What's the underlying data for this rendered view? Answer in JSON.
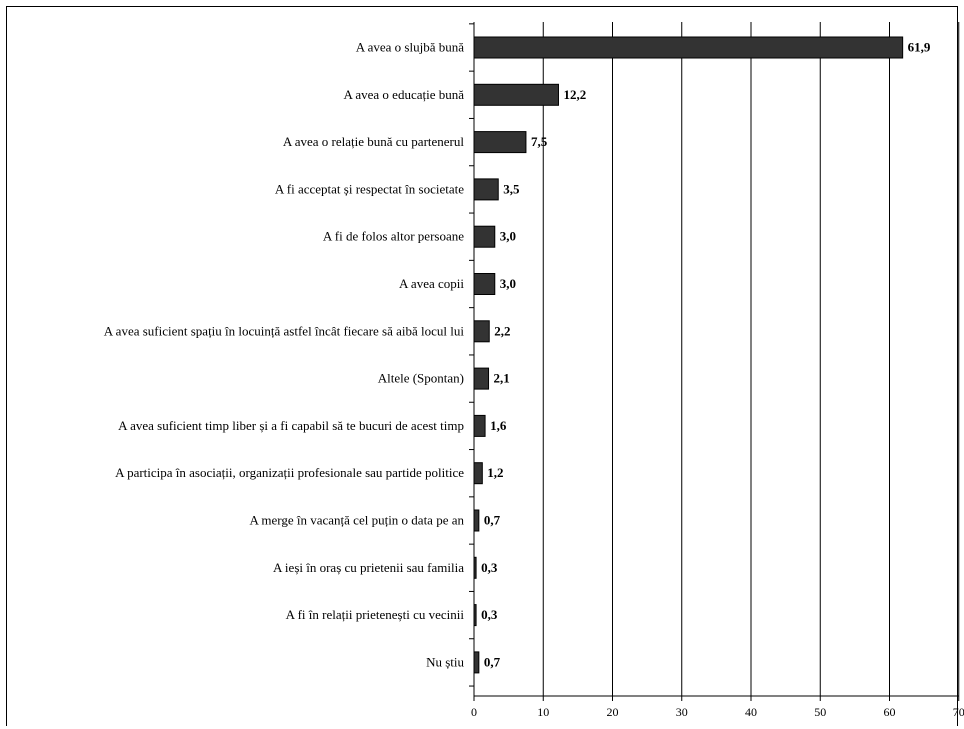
{
  "chart_data": {
    "type": "bar",
    "orientation": "horizontal",
    "categories": [
      "A avea o slujbă bună",
      "A avea o educație bună",
      "A avea o relație bună cu partenerul",
      "A fi acceptat și respectat în societate",
      "A fi de folos altor persoane",
      "A avea copii",
      "A avea suficient spațiu în locuință astfel încât fiecare să aibă locul lui",
      "Altele (Spontan)",
      "A avea suficient timp liber și a fi capabil să te bucuri de acest timp",
      "A participa în asociații, organizații profesionale sau partide politice",
      "A merge în vacanță cel puțin o data pe an",
      "A ieși în oraș cu prietenii sau familia",
      "A fi în relații prietenești cu vecinii",
      "Nu știu"
    ],
    "values": [
      61.9,
      12.2,
      7.5,
      3.5,
      3.0,
      3.0,
      2.2,
      2.1,
      1.6,
      1.2,
      0.7,
      0.3,
      0.3,
      0.7
    ],
    "value_labels": [
      "61,9",
      "12,2",
      "7,5",
      "3,5",
      "3,0",
      "3,0",
      "2,2",
      "2,1",
      "1,6",
      "1,2",
      "0,7",
      "0,3",
      "0,3",
      "0,7"
    ],
    "xlim": [
      0,
      70
    ],
    "x_ticks": [
      "0",
      "10",
      "20",
      "30",
      "40",
      "50",
      "60",
      "70"
    ],
    "grid": true,
    "bar_color": "#333333",
    "title": "",
    "xlabel": "",
    "ylabel": ""
  }
}
